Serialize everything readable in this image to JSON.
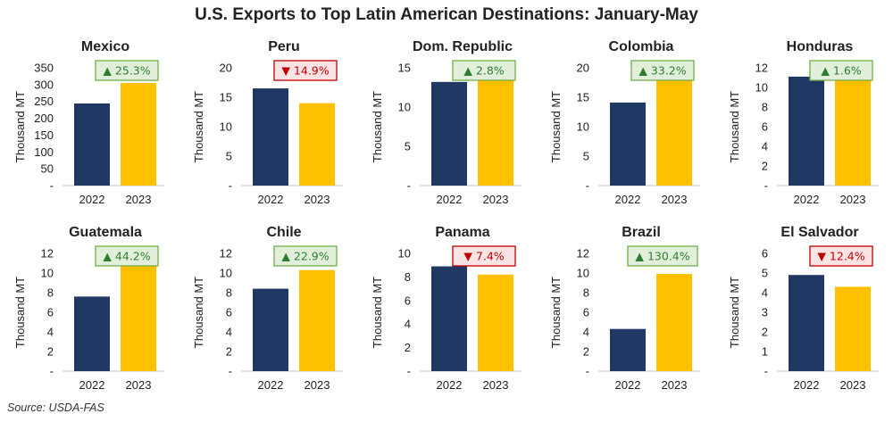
{
  "title": "U.S. Exports to Top Latin American Destinations: January-May",
  "source": "Source: USDA-FAS",
  "colors": {
    "bar_2022": "#1f3864",
    "bar_2023": "#ffc000",
    "up_fill": "#e2efda",
    "up_border": "#70ad47",
    "up_text": "#2e7d32",
    "down_fill": "#fce4e4",
    "down_border": "#c00000",
    "down_text": "#c00000"
  },
  "chart_data": [
    {
      "type": "bar",
      "title": "Mexico",
      "ylabel": "Thousand MT",
      "categories": [
        "2022",
        "2023"
      ],
      "values": [
        244,
        305
      ],
      "ylim": [
        0,
        350
      ],
      "ticks": [
        "-",
        "50",
        "100",
        "150",
        "200",
        "250",
        "300",
        "350"
      ],
      "tick_values": [
        0,
        50,
        100,
        150,
        200,
        250,
        300,
        350
      ],
      "change": "▲ 25.3%",
      "direction": "up"
    },
    {
      "type": "bar",
      "title": "Peru",
      "ylabel": "Thousand MT",
      "categories": [
        "2022",
        "2023"
      ],
      "values": [
        16.5,
        14.0
      ],
      "ylim": [
        0,
        20
      ],
      "ticks": [
        "-",
        "5",
        "10",
        "15",
        "20"
      ],
      "tick_values": [
        0,
        5,
        10,
        15,
        20
      ],
      "change": "▼ 14.9%",
      "direction": "down"
    },
    {
      "type": "bar",
      "title": "Dom. Republic",
      "ylabel": "Thousand MT",
      "categories": [
        "2022",
        "2023"
      ],
      "values": [
        13.2,
        13.6
      ],
      "ylim": [
        0,
        15
      ],
      "ticks": [
        "-",
        "5",
        "10",
        "15"
      ],
      "tick_values": [
        0,
        5,
        10,
        15
      ],
      "change": "▲ 2.8%",
      "direction": "up"
    },
    {
      "type": "bar",
      "title": "Colombia",
      "ylabel": "Thousand MT",
      "categories": [
        "2022",
        "2023"
      ],
      "values": [
        14.1,
        18.8
      ],
      "ylim": [
        0,
        20
      ],
      "ticks": [
        "-",
        "5",
        "10",
        "15",
        "20"
      ],
      "tick_values": [
        0,
        5,
        10,
        15,
        20
      ],
      "change": "▲ 33.2%",
      "direction": "up"
    },
    {
      "type": "bar",
      "title": "Honduras",
      "ylabel": "Thousand MT",
      "categories": [
        "2022",
        "2023"
      ],
      "values": [
        11.1,
        11.3
      ],
      "ylim": [
        0,
        12
      ],
      "ticks": [
        "-",
        "2",
        "4",
        "6",
        "8",
        "10",
        "12"
      ],
      "tick_values": [
        0,
        2,
        4,
        6,
        8,
        10,
        12
      ],
      "change": "▲ 1.6%",
      "direction": "up"
    },
    {
      "type": "bar",
      "title": "Guatemala",
      "ylabel": "Thousand MT",
      "categories": [
        "2022",
        "2023"
      ],
      "values": [
        7.6,
        11.0
      ],
      "ylim": [
        0,
        12
      ],
      "ticks": [
        "-",
        "2",
        "4",
        "6",
        "8",
        "10",
        "12"
      ],
      "tick_values": [
        0,
        2,
        4,
        6,
        8,
        10,
        12
      ],
      "change": "▲ 44.2%",
      "direction": "up"
    },
    {
      "type": "bar",
      "title": "Chile",
      "ylabel": "Thousand MT",
      "categories": [
        "2022",
        "2023"
      ],
      "values": [
        8.4,
        10.3
      ],
      "ylim": [
        0,
        12
      ],
      "ticks": [
        "-",
        "2",
        "4",
        "6",
        "8",
        "10",
        "12"
      ],
      "tick_values": [
        0,
        2,
        4,
        6,
        8,
        10,
        12
      ],
      "change": "▲ 22.9%",
      "direction": "up"
    },
    {
      "type": "bar",
      "title": "Panama",
      "ylabel": "Thousand MT",
      "categories": [
        "2022",
        "2023"
      ],
      "values": [
        8.9,
        8.2
      ],
      "ylim": [
        0,
        10
      ],
      "ticks": [
        "-",
        "2",
        "4",
        "6",
        "8",
        "10"
      ],
      "tick_values": [
        0,
        2,
        4,
        6,
        8,
        10
      ],
      "change": "▼ 7.4%",
      "direction": "down"
    },
    {
      "type": "bar",
      "title": "Brazil",
      "ylabel": "Thousand MT",
      "categories": [
        "2022",
        "2023"
      ],
      "values": [
        4.3,
        9.9
      ],
      "ylim": [
        0,
        12
      ],
      "ticks": [
        "-",
        "2",
        "4",
        "6",
        "8",
        "10",
        "12"
      ],
      "tick_values": [
        0,
        2,
        4,
        6,
        8,
        10,
        12
      ],
      "change": "▲ 130.4%",
      "direction": "up"
    },
    {
      "type": "bar",
      "title": "El Salvador",
      "ylabel": "Thousand MT",
      "categories": [
        "2022",
        "2023"
      ],
      "values": [
        4.9,
        4.3
      ],
      "ylim": [
        0,
        6
      ],
      "ticks": [
        "-",
        "1",
        "2",
        "3",
        "4",
        "5",
        "6"
      ],
      "tick_values": [
        0,
        1,
        2,
        3,
        4,
        5,
        6
      ],
      "change": "▼ 12.4%",
      "direction": "down"
    }
  ]
}
